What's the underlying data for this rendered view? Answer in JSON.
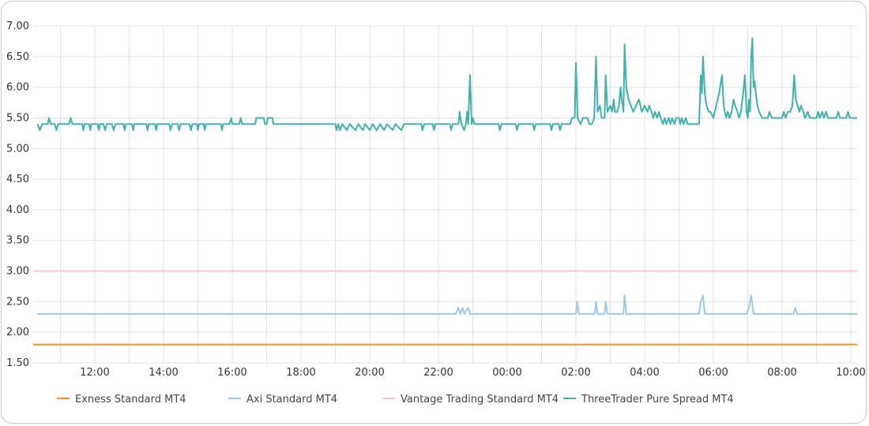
{
  "chart_data": {
    "type": "line",
    "title": "",
    "xlabel": "",
    "ylabel": "",
    "ylim": [
      1.5,
      7.0
    ],
    "y_ticks": [
      "7.00",
      "6.50",
      "6.00",
      "5.50",
      "5.00",
      "4.50",
      "4.00",
      "3.50",
      "3.00",
      "2.50",
      "2.00",
      "1.50"
    ],
    "x_ticks": [
      "12:00",
      "14:00",
      "16:00",
      "18:00",
      "20:00",
      "22:00",
      "00:00",
      "02:00",
      "04:00",
      "06:00",
      "08:00",
      "10:00"
    ],
    "grid": true,
    "legend_position": "bottom",
    "series": [
      {
        "name": "Exness Standard MT4",
        "color": "#f0961e",
        "points": [
          [
            "10:30",
            1.8
          ],
          [
            "10:20",
            1.8
          ]
        ]
      },
      {
        "name": "Axi Standard MT4",
        "color": "#9ccbe8",
        "points": [
          [
            "10:20",
            2.3
          ],
          [
            "22:30",
            2.3
          ],
          [
            "22:35",
            2.4
          ],
          [
            "22:38",
            2.3
          ],
          [
            "22:42",
            2.4
          ],
          [
            "22:45",
            2.3
          ],
          [
            "22:52",
            2.4
          ],
          [
            "22:55",
            2.3
          ],
          [
            "02:00",
            2.3
          ],
          [
            "02:02",
            2.5
          ],
          [
            "02:05",
            2.3
          ],
          [
            "02:33",
            2.3
          ],
          [
            "02:35",
            2.5
          ],
          [
            "02:38",
            2.3
          ],
          [
            "02:50",
            2.3
          ],
          [
            "02:52",
            2.5
          ],
          [
            "02:55",
            2.3
          ],
          [
            "03:23",
            2.3
          ],
          [
            "03:25",
            2.6
          ],
          [
            "03:28",
            2.3
          ],
          [
            "05:35",
            2.3
          ],
          [
            "05:38",
            2.5
          ],
          [
            "05:42",
            2.6
          ],
          [
            "05:45",
            2.3
          ],
          [
            "06:58",
            2.3
          ],
          [
            "07:02",
            2.4
          ],
          [
            "07:06",
            2.6
          ],
          [
            "07:10",
            2.3
          ],
          [
            "08:20",
            2.3
          ],
          [
            "08:23",
            2.4
          ],
          [
            "08:26",
            2.3
          ],
          [
            "10:20",
            2.3
          ]
        ]
      },
      {
        "name": "Vantage Trading Standard MT4",
        "color": "#f8c9c6",
        "points": [
          [
            "10:20",
            3.0
          ],
          [
            "10:20",
            3.0
          ]
        ]
      },
      {
        "name": "ThreeTrader Pure Spread MT4",
        "color": "#3eb3ad",
        "points": [
          [
            "10:20",
            5.4
          ],
          [
            "10:24",
            5.3
          ],
          [
            "10:28",
            5.4
          ],
          [
            "10:38",
            5.4
          ],
          [
            "10:40",
            5.5
          ],
          [
            "10:43",
            5.4
          ],
          [
            "10:50",
            5.4
          ],
          [
            "10:53",
            5.3
          ],
          [
            "10:56",
            5.4
          ],
          [
            "11:15",
            5.4
          ],
          [
            "11:18",
            5.5
          ],
          [
            "11:21",
            5.4
          ],
          [
            "11:38",
            5.4
          ],
          [
            "11:40",
            5.3
          ],
          [
            "11:42",
            5.4
          ],
          [
            "11:50",
            5.4
          ],
          [
            "11:52",
            5.3
          ],
          [
            "11:54",
            5.4
          ],
          [
            "12:05",
            5.4
          ],
          [
            "12:07",
            5.3
          ],
          [
            "12:09",
            5.4
          ],
          [
            "12:15",
            5.4
          ],
          [
            "12:18",
            5.3
          ],
          [
            "12:21",
            5.4
          ],
          [
            "12:30",
            5.4
          ],
          [
            "12:33",
            5.3
          ],
          [
            "12:36",
            5.4
          ],
          [
            "12:50",
            5.4
          ],
          [
            "12:52",
            5.3
          ],
          [
            "12:54",
            5.4
          ],
          [
            "13:05",
            5.4
          ],
          [
            "13:07",
            5.3
          ],
          [
            "13:09",
            5.4
          ],
          [
            "13:30",
            5.4
          ],
          [
            "13:32",
            5.3
          ],
          [
            "13:34",
            5.4
          ],
          [
            "13:45",
            5.4
          ],
          [
            "13:47",
            5.3
          ],
          [
            "13:49",
            5.4
          ],
          [
            "14:10",
            5.4
          ],
          [
            "14:12",
            5.3
          ],
          [
            "14:15",
            5.4
          ],
          [
            "14:25",
            5.4
          ],
          [
            "14:27",
            5.3
          ],
          [
            "14:30",
            5.4
          ],
          [
            "14:45",
            5.4
          ],
          [
            "14:48",
            5.3
          ],
          [
            "14:50",
            5.4
          ],
          [
            "14:58",
            5.4
          ],
          [
            "15:00",
            5.3
          ],
          [
            "15:02",
            5.4
          ],
          [
            "15:10",
            5.4
          ],
          [
            "15:12",
            5.3
          ],
          [
            "15:14",
            5.4
          ],
          [
            "15:40",
            5.4
          ],
          [
            "15:42",
            5.3
          ],
          [
            "15:44",
            5.4
          ],
          [
            "15:55",
            5.4
          ],
          [
            "15:58",
            5.5
          ],
          [
            "16:00",
            5.4
          ],
          [
            "16:12",
            5.4
          ],
          [
            "16:15",
            5.5
          ],
          [
            "16:17",
            5.4
          ],
          [
            "16:40",
            5.4
          ],
          [
            "16:42",
            5.5
          ],
          [
            "16:55",
            5.5
          ],
          [
            "16:57",
            5.4
          ],
          [
            "17:00",
            5.4
          ],
          [
            "17:02",
            5.5
          ],
          [
            "17:10",
            5.5
          ],
          [
            "17:12",
            5.4
          ],
          [
            "19:00",
            5.4
          ],
          [
            "19:02",
            5.3
          ],
          [
            "19:05",
            5.4
          ],
          [
            "19:08",
            5.3
          ],
          [
            "19:12",
            5.4
          ],
          [
            "19:20",
            5.3
          ],
          [
            "19:25",
            5.4
          ],
          [
            "19:35",
            5.3
          ],
          [
            "19:40",
            5.4
          ],
          [
            "19:48",
            5.3
          ],
          [
            "19:52",
            5.4
          ],
          [
            "20:00",
            5.3
          ],
          [
            "20:05",
            5.4
          ],
          [
            "20:12",
            5.3
          ],
          [
            "20:18",
            5.4
          ],
          [
            "20:25",
            5.3
          ],
          [
            "20:30",
            5.4
          ],
          [
            "20:40",
            5.3
          ],
          [
            "20:45",
            5.4
          ],
          [
            "20:55",
            5.3
          ],
          [
            "21:00",
            5.4
          ],
          [
            "21:30",
            5.4
          ],
          [
            "21:32",
            5.3
          ],
          [
            "21:35",
            5.4
          ],
          [
            "21:50",
            5.4
          ],
          [
            "21:52",
            5.3
          ],
          [
            "21:55",
            5.4
          ],
          [
            "22:20",
            5.4
          ],
          [
            "22:22",
            5.3
          ],
          [
            "22:25",
            5.4
          ],
          [
            "22:35",
            5.4
          ],
          [
            "22:37",
            5.6
          ],
          [
            "22:40",
            5.4
          ],
          [
            "22:45",
            5.3
          ],
          [
            "22:48",
            5.4
          ],
          [
            "22:50",
            5.6
          ],
          [
            "22:52",
            5.4
          ],
          [
            "22:55",
            6.2
          ],
          [
            "22:58",
            5.4
          ],
          [
            "23:00",
            5.5
          ],
          [
            "23:03",
            5.4
          ],
          [
            "23:45",
            5.4
          ],
          [
            "23:47",
            5.3
          ],
          [
            "23:50",
            5.4
          ],
          [
            "00:15",
            5.4
          ],
          [
            "00:17",
            5.3
          ],
          [
            "00:20",
            5.4
          ],
          [
            "00:45",
            5.4
          ],
          [
            "00:47",
            5.3
          ],
          [
            "00:50",
            5.4
          ],
          [
            "01:15",
            5.4
          ],
          [
            "01:17",
            5.3
          ],
          [
            "01:20",
            5.4
          ],
          [
            "01:30",
            5.4
          ],
          [
            "01:32",
            5.3
          ],
          [
            "01:35",
            5.4
          ],
          [
            "01:45",
            5.4
          ],
          [
            "01:50",
            5.4
          ],
          [
            "01:53",
            5.5
          ],
          [
            "01:58",
            5.5
          ],
          [
            "02:00",
            6.4
          ],
          [
            "02:03",
            5.5
          ],
          [
            "02:08",
            5.4
          ],
          [
            "02:12",
            5.5
          ],
          [
            "02:20",
            5.5
          ],
          [
            "02:23",
            5.4
          ],
          [
            "02:28",
            5.4
          ],
          [
            "02:32",
            5.5
          ],
          [
            "02:35",
            6.5
          ],
          [
            "02:38",
            5.6
          ],
          [
            "02:42",
            5.7
          ],
          [
            "02:45",
            5.5
          ],
          [
            "02:50",
            5.5
          ],
          [
            "02:52",
            6.2
          ],
          [
            "02:55",
            5.6
          ],
          [
            "03:00",
            5.7
          ],
          [
            "03:03",
            5.6
          ],
          [
            "03:06",
            5.8
          ],
          [
            "03:08",
            5.6
          ],
          [
            "03:12",
            5.6
          ],
          [
            "03:15",
            5.7
          ],
          [
            "03:18",
            6.0
          ],
          [
            "03:20",
            5.8
          ],
          [
            "03:23",
            5.6
          ],
          [
            "03:25",
            6.7
          ],
          [
            "03:28",
            6.0
          ],
          [
            "03:32",
            5.8
          ],
          [
            "03:36",
            5.7
          ],
          [
            "03:40",
            5.6
          ],
          [
            "03:45",
            5.7
          ],
          [
            "03:50",
            5.8
          ],
          [
            "03:55",
            5.6
          ],
          [
            "04:00",
            5.7
          ],
          [
            "04:05",
            5.6
          ],
          [
            "04:08",
            5.7
          ],
          [
            "04:12",
            5.6
          ],
          [
            "04:15",
            5.5
          ],
          [
            "04:18",
            5.6
          ],
          [
            "04:22",
            5.5
          ],
          [
            "04:25",
            5.6
          ],
          [
            "04:28",
            5.5
          ],
          [
            "04:32",
            5.4
          ],
          [
            "04:35",
            5.5
          ],
          [
            "04:38",
            5.4
          ],
          [
            "04:42",
            5.5
          ],
          [
            "04:45",
            5.4
          ],
          [
            "04:48",
            5.5
          ],
          [
            "04:52",
            5.4
          ],
          [
            "04:55",
            5.5
          ],
          [
            "05:00",
            5.5
          ],
          [
            "05:02",
            5.4
          ],
          [
            "05:05",
            5.5
          ],
          [
            "05:08",
            5.4
          ],
          [
            "05:12",
            5.5
          ],
          [
            "05:15",
            5.4
          ],
          [
            "05:35",
            5.4
          ],
          [
            "05:38",
            6.2
          ],
          [
            "05:40",
            5.9
          ],
          [
            "05:42",
            6.5
          ],
          [
            "05:45",
            5.9
          ],
          [
            "05:48",
            5.7
          ],
          [
            "05:52",
            5.6
          ],
          [
            "05:55",
            5.6
          ],
          [
            "06:00",
            5.5
          ],
          [
            "06:05",
            5.7
          ],
          [
            "06:10",
            5.9
          ],
          [
            "06:15",
            6.2
          ],
          [
            "06:18",
            5.7
          ],
          [
            "06:22",
            5.5
          ],
          [
            "06:25",
            5.6
          ],
          [
            "06:28",
            5.5
          ],
          [
            "06:32",
            5.6
          ],
          [
            "06:35",
            5.8
          ],
          [
            "06:38",
            5.7
          ],
          [
            "06:42",
            5.6
          ],
          [
            "06:45",
            5.5
          ],
          [
            "06:48",
            5.6
          ],
          [
            "06:52",
            5.9
          ],
          [
            "06:55",
            6.2
          ],
          [
            "06:58",
            5.6
          ],
          [
            "07:00",
            5.5
          ],
          [
            "07:02",
            5.8
          ],
          [
            "07:04",
            5.6
          ],
          [
            "07:06",
            6.5
          ],
          [
            "07:08",
            6.8
          ],
          [
            "07:10",
            6.0
          ],
          [
            "07:12",
            6.1
          ],
          [
            "07:14",
            5.9
          ],
          [
            "07:17",
            5.7
          ],
          [
            "07:20",
            5.6
          ],
          [
            "07:25",
            5.5
          ],
          [
            "07:35",
            5.5
          ],
          [
            "07:38",
            5.6
          ],
          [
            "07:42",
            5.5
          ],
          [
            "08:00",
            5.5
          ],
          [
            "08:03",
            5.6
          ],
          [
            "08:06",
            5.5
          ],
          [
            "08:10",
            5.6
          ],
          [
            "08:14",
            5.6
          ],
          [
            "08:18",
            5.7
          ],
          [
            "08:21",
            6.2
          ],
          [
            "08:24",
            5.8
          ],
          [
            "08:27",
            5.7
          ],
          [
            "08:30",
            5.6
          ],
          [
            "08:33",
            5.7
          ],
          [
            "08:37",
            5.6
          ],
          [
            "08:40",
            5.5
          ],
          [
            "08:45",
            5.6
          ],
          [
            "08:48",
            5.5
          ],
          [
            "09:00",
            5.5
          ],
          [
            "09:03",
            5.6
          ],
          [
            "09:06",
            5.5
          ],
          [
            "09:10",
            5.6
          ],
          [
            "09:13",
            5.5
          ],
          [
            "09:17",
            5.6
          ],
          [
            "09:20",
            5.5
          ],
          [
            "09:35",
            5.5
          ],
          [
            "09:38",
            5.6
          ],
          [
            "09:41",
            5.5
          ],
          [
            "09:52",
            5.5
          ],
          [
            "09:55",
            5.6
          ],
          [
            "09:58",
            5.5
          ],
          [
            "10:20",
            5.5
          ]
        ]
      }
    ]
  }
}
